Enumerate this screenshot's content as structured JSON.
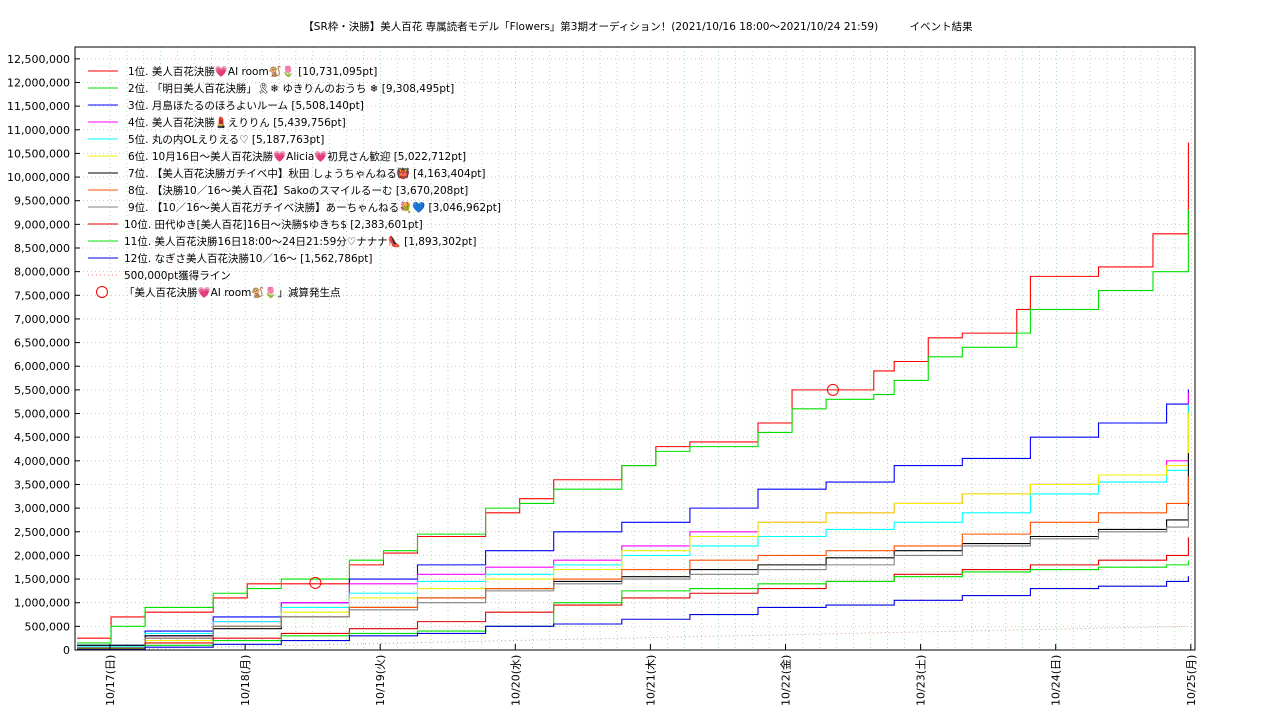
{
  "chart_data": {
    "type": "line",
    "title": "【SR枠・決勝】美人百花 専属読者モデル「Flowers」第3期オーディション！(2021/10/16 18:00〜2021/10/24 21:59)　　　イベント結果",
    "xlabel": "",
    "ylabel": "",
    "ylim": [
      0,
      12750000
    ],
    "yticks": [
      0,
      500000,
      1000000,
      1500000,
      2000000,
      2500000,
      3000000,
      3500000,
      4000000,
      4500000,
      5000000,
      5500000,
      6000000,
      6500000,
      7000000,
      7500000,
      8000000,
      8500000,
      9000000,
      9500000,
      10000000,
      10500000,
      11000000,
      11500000,
      12000000,
      12500000
    ],
    "x_tick_labels": [
      "10/17(日)",
      "10/18(月)",
      "10/19(火)",
      "10/20(水)",
      "10/21(木)",
      "10/22(金)",
      "10/23(土)",
      "10/24(日)",
      "10/25(月)"
    ],
    "x_unit": "days since 10/16 18:00",
    "grid": true,
    "legend_position": "top-left",
    "series": [
      {
        "name": "1位. 美人百花決勝💗AI room🐒🌷 [10,731,095pt]",
        "color": "#ff0000",
        "x": [
          0,
          0.25,
          0.5,
          1,
          1.25,
          1.5,
          2,
          2.25,
          2.5,
          3,
          3.25,
          3.5,
          4,
          4.25,
          4.5,
          5,
          5.25,
          5.55,
          5.85,
          6,
          6.25,
          6.5,
          6.9,
          7,
          7.5,
          7.9,
          8.16
        ],
        "y": [
          250000,
          700000,
          800000,
          1100000,
          1400000,
          1400000,
          1800000,
          2050000,
          2400000,
          2900000,
          3200000,
          3600000,
          3900000,
          4300000,
          4400000,
          4800000,
          5500000,
          5500000,
          5900000,
          6100000,
          6600000,
          6700000,
          7200000,
          7900000,
          8100000,
          8800000,
          10731095
        ]
      },
      {
        "name": "2位. 「明日美人百花決勝」🎗❄ ゆきりんのおうち ❄ [9,308,495pt]",
        "color": "#00e000",
        "x": [
          0,
          0.25,
          0.5,
          1,
          1.25,
          1.5,
          2,
          2.25,
          2.5,
          3,
          3.25,
          3.5,
          4,
          4.25,
          4.5,
          5,
          5.25,
          5.5,
          5.85,
          6,
          6.25,
          6.5,
          6.9,
          7,
          7.5,
          7.9,
          8.16
        ],
        "y": [
          150000,
          500000,
          900000,
          1200000,
          1300000,
          1500000,
          1900000,
          2100000,
          2450000,
          3000000,
          3100000,
          3400000,
          3900000,
          4200000,
          4300000,
          4600000,
          5100000,
          5300000,
          5400000,
          5700000,
          6200000,
          6400000,
          6700000,
          7200000,
          7600000,
          8000000,
          9308495
        ]
      },
      {
        "name": "3位. 月島ほたるのほろよいルーム [5,508,140pt]",
        "color": "#0000ff",
        "x": [
          0,
          0.5,
          1,
          1.5,
          2,
          2.5,
          3,
          3.5,
          4,
          4.5,
          5,
          5.5,
          6,
          6.5,
          7,
          7.5,
          8,
          8.16
        ],
        "y": [
          100000,
          400000,
          700000,
          1000000,
          1500000,
          1800000,
          2100000,
          2500000,
          2700000,
          3000000,
          3400000,
          3550000,
          3900000,
          4050000,
          4500000,
          4800000,
          5200000,
          5508140
        ]
      },
      {
        "name": "4位. 美人百花決勝💄えりりん [5,439,756pt]",
        "color": "#ff00ff",
        "x": [
          0,
          0.5,
          1,
          1.5,
          2,
          2.5,
          3,
          3.5,
          4,
          4.5,
          5,
          5.5,
          6,
          6.5,
          7,
          7.5,
          8,
          8.16
        ],
        "y": [
          50000,
          300000,
          600000,
          1000000,
          1400000,
          1600000,
          1750000,
          1900000,
          2200000,
          2500000,
          2700000,
          2900000,
          3100000,
          3300000,
          3500000,
          3700000,
          4000000,
          5439756
        ]
      },
      {
        "name": "5位. 丸の内OLえりえる♡ [5,187,763pt]",
        "color": "#00ffff",
        "x": [
          0,
          0.5,
          1,
          1.5,
          2,
          2.5,
          3,
          3.5,
          4,
          4.5,
          5,
          5.5,
          6,
          6.5,
          7,
          7.5,
          8,
          8.16
        ],
        "y": [
          80000,
          350000,
          600000,
          900000,
          1200000,
          1450000,
          1600000,
          1800000,
          2000000,
          2200000,
          2400000,
          2550000,
          2700000,
          2900000,
          3300000,
          3550000,
          3800000,
          5187763
        ]
      },
      {
        "name": "6位. 10月16日〜美人百花決勝💗Alicia💗初見さん歓迎 [5,022,712pt]",
        "color": "#f0f000",
        "x": [
          0,
          0.5,
          1,
          1.5,
          2,
          2.5,
          3,
          3.5,
          4,
          4.5,
          5,
          5.5,
          6,
          6.5,
          7,
          7.5,
          8,
          8.16
        ],
        "y": [
          30000,
          200000,
          500000,
          800000,
          1100000,
          1300000,
          1500000,
          1700000,
          2100000,
          2400000,
          2700000,
          2900000,
          3100000,
          3300000,
          3500000,
          3700000,
          3900000,
          5022712
        ]
      },
      {
        "name": "7位. 【美人百花決勝ガチイベ中】秋田 しょうちゃんねる👹 [4,163,404pt]",
        "color": "#000000",
        "x": [
          0,
          0.5,
          1,
          1.5,
          2,
          2.5,
          3,
          3.5,
          4,
          4.5,
          5,
          5.5,
          6,
          6.5,
          7,
          7.5,
          8,
          8.16
        ],
        "y": [
          100000,
          300000,
          450000,
          700000,
          900000,
          1100000,
          1300000,
          1450000,
          1550000,
          1700000,
          1800000,
          1950000,
          2100000,
          2250000,
          2400000,
          2550000,
          2750000,
          4163404
        ]
      },
      {
        "name": "8位. 【決勝10／16〜美人百花】Sakoのスマイルるーむ [3,670,208pt]",
        "color": "#ff5000",
        "x": [
          0,
          0.5,
          1,
          1.5,
          2,
          2.5,
          3,
          3.5,
          4,
          4.5,
          5,
          5.5,
          6,
          6.5,
          7,
          7.5,
          8,
          8.16
        ],
        "y": [
          50000,
          250000,
          500000,
          700000,
          900000,
          1100000,
          1300000,
          1500000,
          1700000,
          1900000,
          2000000,
          2100000,
          2200000,
          2450000,
          2700000,
          2900000,
          3100000,
          3670208
        ]
      },
      {
        "name": "9位. 【10／16〜美人百花ガチイベ決勝】あーちゃんねる💐💙 [3,046,962pt]",
        "color": "#808080",
        "x": [
          0,
          0.5,
          1,
          1.5,
          2,
          2.5,
          3,
          3.5,
          4,
          4.5,
          5,
          5.5,
          6,
          6.5,
          7,
          7.5,
          8,
          8.16
        ],
        "y": [
          50000,
          250000,
          500000,
          700000,
          850000,
          1000000,
          1250000,
          1400000,
          1500000,
          1600000,
          1700000,
          1800000,
          2000000,
          2200000,
          2350000,
          2500000,
          2600000,
          3046962
        ]
      },
      {
        "name": "10位. 田代ゆき[美人百花]16日〜決勝$ゆきち$ [2,383,601pt]",
        "color": "#e00000",
        "x": [
          0,
          0.5,
          1,
          1.5,
          2,
          2.5,
          3,
          3.5,
          4,
          4.5,
          5,
          5.5,
          6,
          6.5,
          7,
          7.5,
          8,
          8.16
        ],
        "y": [
          30000,
          150000,
          250000,
          350000,
          450000,
          600000,
          800000,
          950000,
          1100000,
          1200000,
          1300000,
          1450000,
          1600000,
          1700000,
          1800000,
          1900000,
          2000000,
          2383601
        ]
      },
      {
        "name": "11位. 美人百花決勝16日18:00〜24日21:59分♡ナナナ👠 [1,893,302pt]",
        "color": "#00e000",
        "x": [
          0,
          0.5,
          1,
          1.5,
          2,
          2.5,
          3,
          3.5,
          4,
          4.5,
          5,
          5.5,
          6,
          6.5,
          7,
          7.5,
          8,
          8.16
        ],
        "y": [
          20000,
          100000,
          200000,
          300000,
          350000,
          400000,
          500000,
          1000000,
          1250000,
          1300000,
          1400000,
          1450000,
          1550000,
          1650000,
          1700000,
          1750000,
          1800000,
          1893302
        ]
      },
      {
        "name": "12位. なぎさ美人百花決勝10／16〜 [1,562,786pt]",
        "color": "#0000e0",
        "x": [
          0,
          0.5,
          1,
          1.5,
          2,
          2.5,
          3,
          3.5,
          4,
          4.5,
          5,
          5.5,
          6,
          6.5,
          7,
          7.5,
          8,
          8.16
        ],
        "y": [
          10000,
          60000,
          120000,
          200000,
          300000,
          350000,
          500000,
          550000,
          650000,
          750000,
          900000,
          950000,
          1050000,
          1150000,
          1300000,
          1350000,
          1450000,
          1562786
        ]
      }
    ],
    "reference_line": {
      "name": "500,000pt獲得ライン",
      "color": "#ff8080",
      "x": [
        0,
        4,
        8.16
      ],
      "y": [
        0,
        250000,
        500000
      ]
    },
    "markers": {
      "name": "「美人百花決勝💗AI room🐒🌷」減算発生点",
      "color": "#ff0000",
      "points": [
        {
          "x": 1.75,
          "y": 1420000
        },
        {
          "x": 5.55,
          "y": 5500000
        }
      ]
    }
  }
}
